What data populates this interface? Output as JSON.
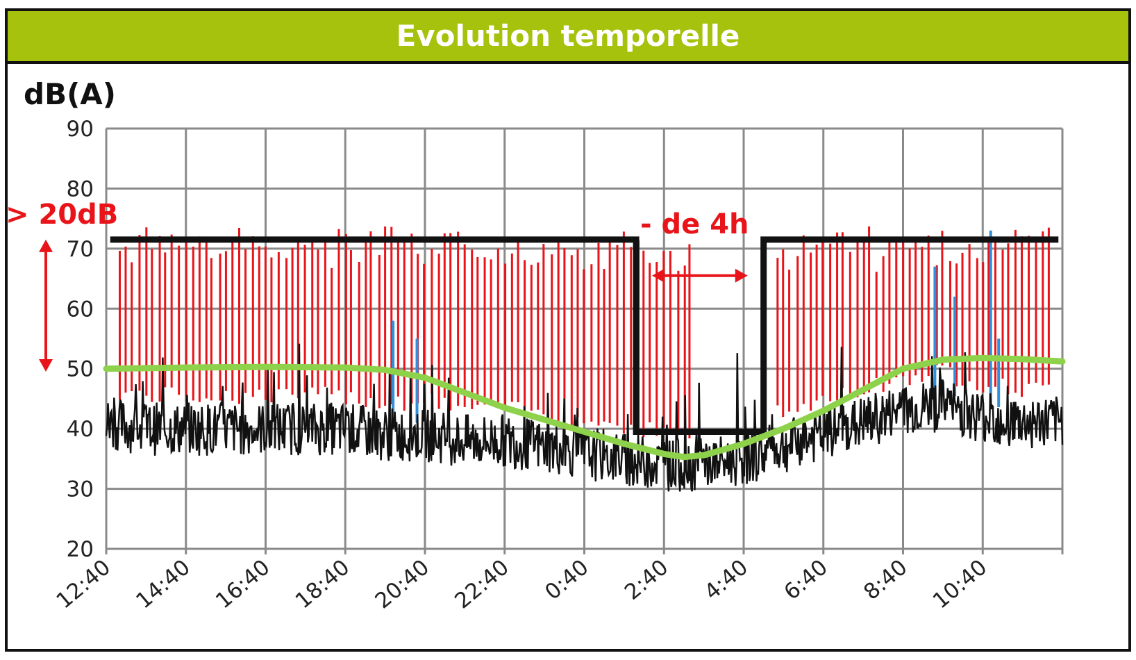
{
  "chart_data": {
    "type": "line",
    "title": "Evolution temporelle",
    "ylabel": "dB(A)",
    "ylim": [
      20,
      90
    ],
    "yticks": [
      90,
      80,
      70,
      60,
      50,
      40,
      30,
      20
    ],
    "xticks": [
      "12:40",
      "14:40",
      "16:40",
      "18:40",
      "20:40",
      "22:40",
      "0:40",
      "2:40",
      "4:40",
      "6:40",
      "8:40",
      "10:40"
    ],
    "grid": true,
    "series": [
      {
        "color": "#e8141a",
        "description_kind": "peak",
        "x_hours": [
          0.5,
          1.0,
          1.5,
          2.0,
          2.5,
          3.0,
          3.5,
          4.0,
          4.5,
          5.0,
          5.5,
          6.0,
          6.5,
          7.0,
          7.5,
          8.0,
          8.5,
          9.0,
          9.5,
          10.0,
          10.5,
          11.0,
          11.5,
          12.0,
          12.5,
          13.0,
          13.5,
          14.0,
          14.5,
          17.0,
          17.5,
          18.0,
          18.5,
          19.0,
          19.5,
          20.0,
          20.5,
          21.0,
          21.5,
          22.0,
          22.5,
          23.0,
          23.5
        ],
        "values": [
          73,
          74,
          75,
          73,
          74,
          72,
          74,
          73,
          74,
          73,
          72,
          74,
          73,
          74,
          73,
          72,
          73,
          73,
          74,
          73,
          72,
          73,
          72,
          71,
          72,
          73,
          72,
          71,
          72,
          72,
          73,
          74,
          75,
          74,
          72,
          73,
          74,
          73,
          73,
          72,
          73,
          74,
          75
        ]
      },
      {
        "color": "#111111",
        "description_kind": "background",
        "x_hours": [
          0,
          1,
          2,
          3,
          4,
          5,
          6,
          7,
          8,
          9,
          10,
          11,
          12,
          13,
          14,
          15,
          16,
          17,
          18,
          19,
          20,
          21,
          22,
          23,
          24
        ],
        "values": [
          41,
          40,
          40,
          40,
          40,
          40,
          40,
          39,
          39,
          38,
          38,
          37,
          36,
          35,
          34,
          34,
          35,
          37,
          39,
          41,
          43,
          44,
          42,
          41,
          41
        ]
      },
      {
        "color": "#2f8fd8",
        "description_kind": "events",
        "x_hours": [
          7.2,
          7.8,
          20.8,
          21.3,
          22.2,
          22.4
        ],
        "values": [
          58,
          55,
          67,
          62,
          73,
          55
        ]
      },
      {
        "color": "#8ed14a",
        "description_kind": "trend",
        "x_hours": [
          0,
          2,
          4,
          6,
          7,
          8,
          9,
          10,
          11,
          12,
          13,
          14,
          14.5,
          15,
          16,
          17,
          18,
          19,
          20,
          21,
          22,
          23,
          24
        ],
        "values": [
          50,
          50.2,
          50.3,
          50.2,
          49.8,
          48.5,
          46,
          43.5,
          41.5,
          39.5,
          37.5,
          35.8,
          35.3,
          35.6,
          37.5,
          40,
          43,
          46.5,
          50,
          51.5,
          51.8,
          51.6,
          51.2
        ]
      },
      {
        "color": "#111111",
        "description_kind": "limit",
        "x_hours": [
          0.1,
          13.3,
          13.3,
          16.5,
          16.5,
          23.9
        ],
        "values": [
          71.5,
          71.5,
          39.5,
          39.5,
          71.5,
          71.5
        ]
      }
    ],
    "annotations": [
      {
        "text": "> 20dB",
        "color": "#e8141a"
      },
      {
        "text": "- de 4h",
        "color": "#e8141a"
      }
    ]
  }
}
